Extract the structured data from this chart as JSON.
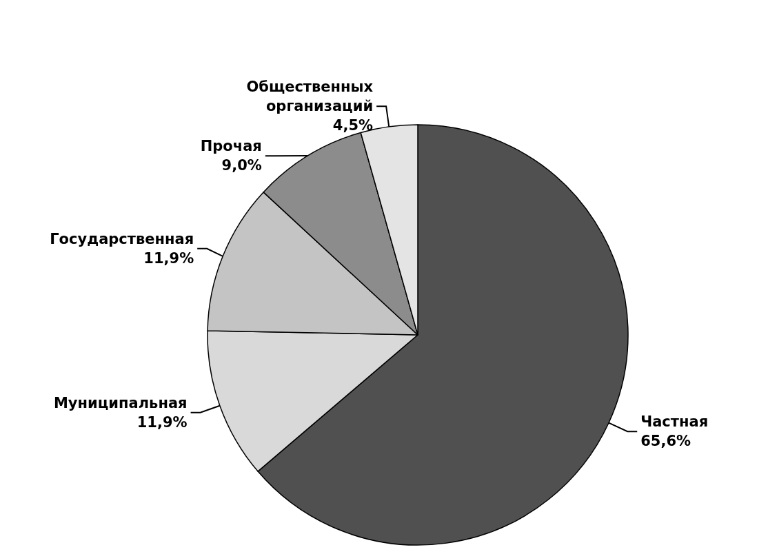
{
  "chart_data": {
    "type": "pie",
    "categories": [
      "Частная",
      "Муниципальная",
      "Государственная",
      "Прочая",
      "Общественных организаций"
    ],
    "values": [
      65.6,
      11.9,
      11.9,
      9.0,
      4.5
    ],
    "value_labels": [
      "65,6%",
      "11,9%",
      "11,9%",
      "9,0%",
      "4,5%"
    ],
    "colors": [
      "#505050",
      "#d9d9d9",
      "#c4c4c4",
      "#8c8c8c",
      "#e4e4e4"
    ]
  }
}
